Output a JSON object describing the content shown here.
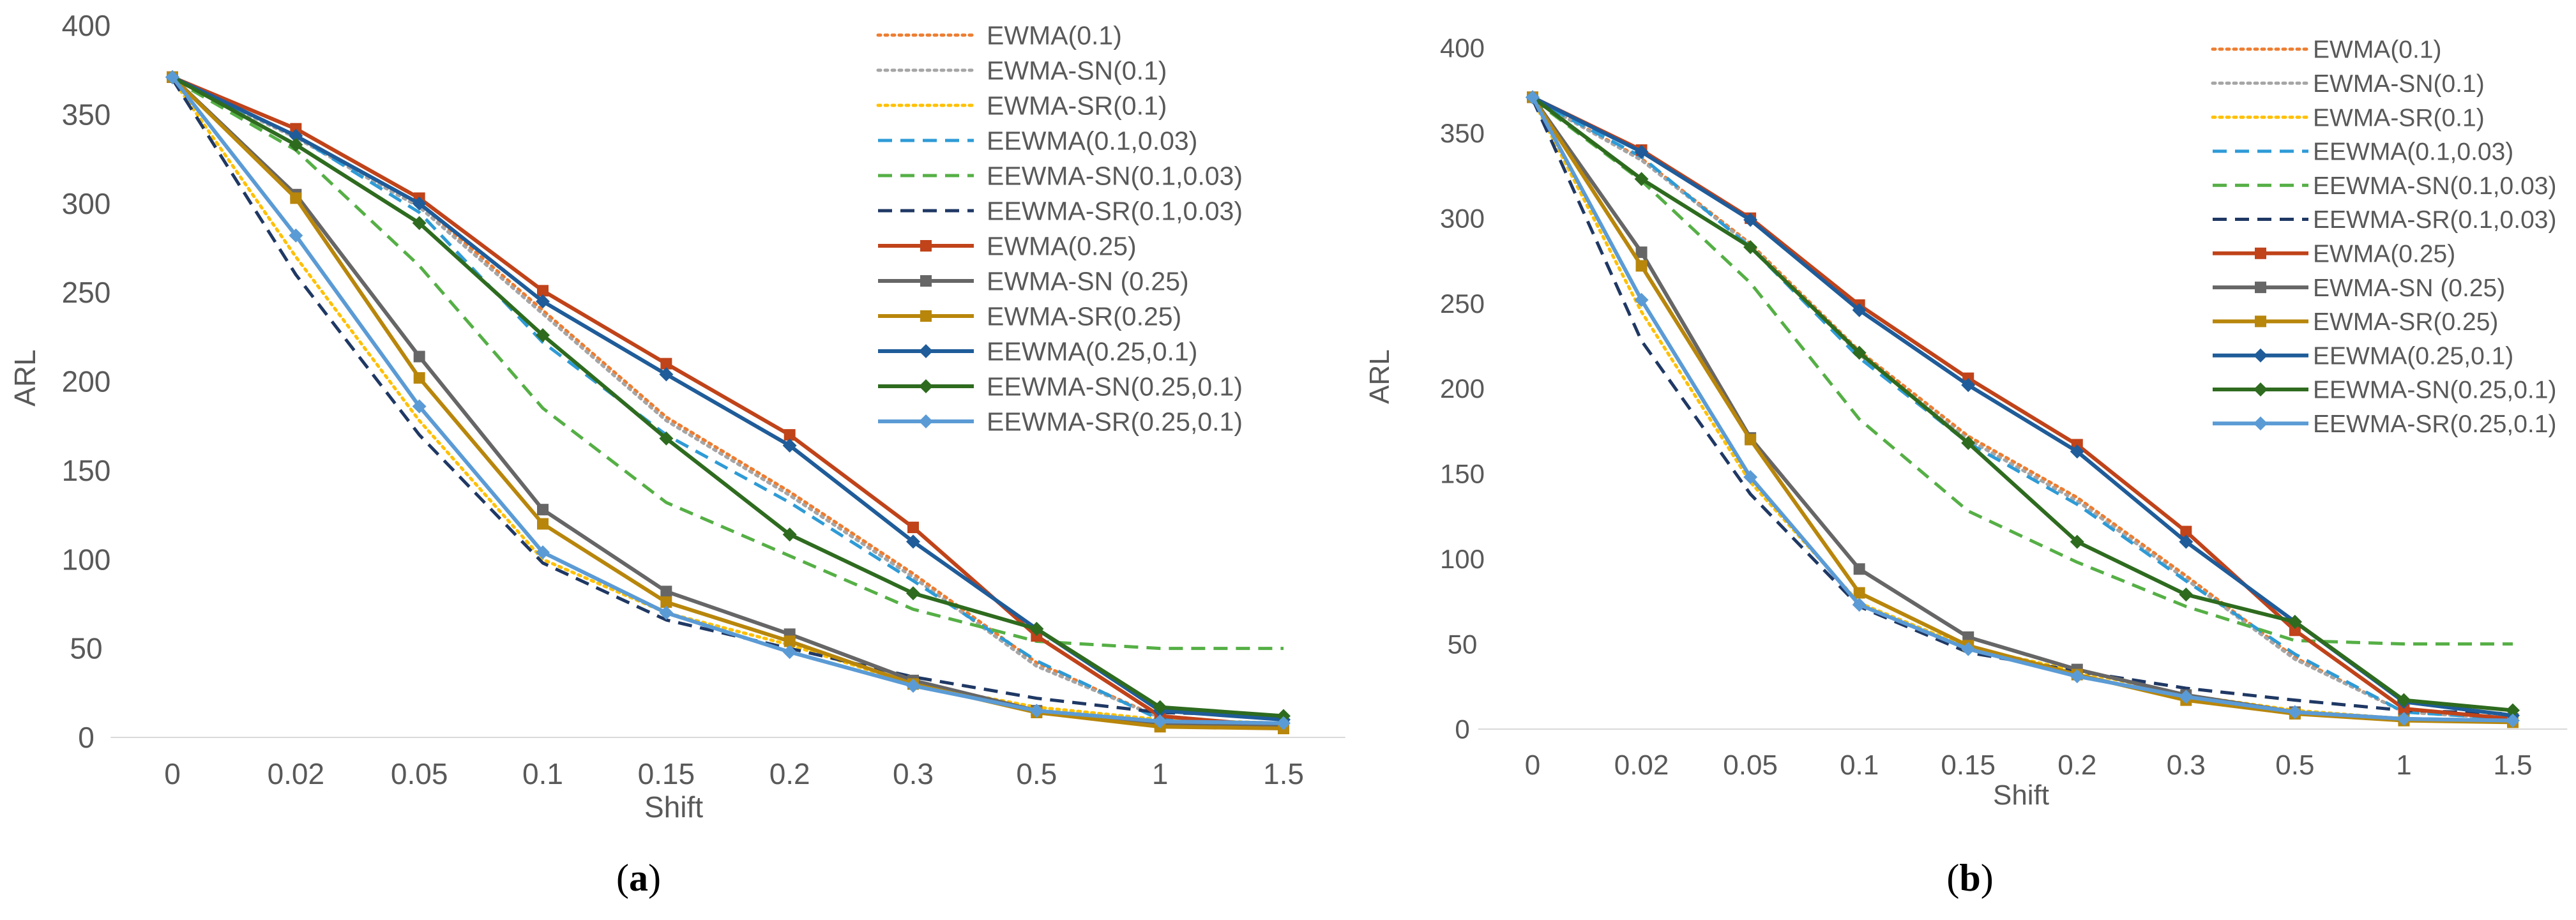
{
  "chart_data": [
    {
      "type": "line",
      "caption_bold": "a",
      "xlabel": "Shift",
      "ylabel": "ARL",
      "categories": [
        "0",
        "0.02",
        "0.05",
        "0.1",
        "0.15",
        "0.2",
        "0.3",
        "0.5",
        "1",
        "1.5"
      ],
      "ylim": [
        0,
        400
      ],
      "yticks": [
        "0",
        "50",
        "100",
        "150",
        "200",
        "250",
        "300",
        "350",
        "400"
      ],
      "legend_position": "top-right",
      "series": [
        {
          "name": "EWMA(0.1)",
          "color": "#ED7D31",
          "style": "dotted",
          "marker": "none",
          "values": [
            370,
            338,
            300,
            240,
            180,
            138,
            92,
            42,
            11,
            7
          ]
        },
        {
          "name": "EWMA-SN(0.1)",
          "color": "#A5A5A5",
          "style": "dotted",
          "marker": "none",
          "values": [
            370,
            337,
            298,
            238,
            178,
            136,
            90,
            40,
            11,
            7
          ]
        },
        {
          "name": "EWMA-SR(0.1)",
          "color": "#FFC000",
          "style": "dotted",
          "marker": "none",
          "values": [
            370,
            270,
            178,
            100,
            70,
            52,
            30,
            17,
            10,
            8
          ]
        },
        {
          "name": "EEWMA(0.1,0.03)",
          "color": "#2E9BD6",
          "style": "dashed",
          "marker": "none",
          "values": [
            370,
            338,
            295,
            222,
            170,
            132,
            88,
            43,
            10,
            7
          ]
        },
        {
          "name": "EEWMA-SN(0.1,0.03)",
          "color": "#55AF45",
          "style": "dashed",
          "marker": "none",
          "values": [
            370,
            330,
            265,
            185,
            132,
            102,
            72,
            54,
            50,
            50
          ]
        },
        {
          "name": "EEWMA-SR(0.1,0.03)",
          "color": "#1F3864",
          "style": "dashed",
          "marker": "none",
          "values": [
            370,
            260,
            170,
            98,
            66,
            50,
            34,
            22,
            14,
            12
          ]
        },
        {
          "name": "EWMA(0.25)",
          "color": "#C0431A",
          "style": "solid",
          "marker": "square",
          "values": [
            371,
            342,
            303,
            251,
            210,
            170,
            118,
            57,
            12,
            6
          ]
        },
        {
          "name": "EWMA-SN (0.25)",
          "color": "#666666",
          "style": "solid",
          "marker": "square",
          "values": [
            371,
            305,
            214,
            128,
            82,
            58,
            32,
            15,
            8,
            7
          ]
        },
        {
          "name": "EWMA-SR(0.25)",
          "color": "#B8860B",
          "style": "solid",
          "marker": "square",
          "values": [
            371,
            303,
            202,
            120,
            76,
            54,
            30,
            14,
            6,
            5
          ]
        },
        {
          "name": "EEWMA(0.25,0.1)",
          "color": "#1F5C99",
          "style": "solid",
          "marker": "diamond",
          "values": [
            371,
            338,
            300,
            245,
            204,
            164,
            110,
            61,
            15,
            10
          ]
        },
        {
          "name": "EEWMA-SN(0.25,0.1)",
          "color": "#2E6B1F",
          "style": "solid",
          "marker": "diamond",
          "values": [
            371,
            333,
            289,
            226,
            168,
            114,
            81,
            61,
            17,
            12
          ]
        },
        {
          "name": "EEWMA-SR(0.25,0.1)",
          "color": "#5B9BD5",
          "style": "solid",
          "marker": "diamond",
          "values": [
            371,
            282,
            186,
            104,
            70,
            48,
            29,
            15,
            9,
            8
          ]
        }
      ]
    },
    {
      "type": "line",
      "caption_bold": "b",
      "xlabel": "Shift",
      "ylabel": "ARL",
      "categories": [
        "0",
        "0.02",
        "0.05",
        "0.1",
        "0.15",
        "0.2",
        "0.3",
        "0.5",
        "1",
        "1.5"
      ],
      "ylim": [
        0,
        400
      ],
      "yticks": [
        "0",
        "50",
        "100",
        "150",
        "200",
        "250",
        "300",
        "350",
        "400"
      ],
      "legend_position": "top-right",
      "series": [
        {
          "name": "EWMA(0.1)",
          "color": "#ED7D31",
          "style": "dotted",
          "marker": "none",
          "values": [
            370,
            335,
            285,
            222,
            172,
            136,
            90,
            42,
            10,
            6
          ]
        },
        {
          "name": "EWMA-SN(0.1)",
          "color": "#A5A5A5",
          "style": "dotted",
          "marker": "none",
          "values": [
            370,
            334,
            284,
            220,
            170,
            134,
            88,
            41,
            10,
            6
          ]
        },
        {
          "name": "EWMA-SR(0.1)",
          "color": "#FFC000",
          "style": "dotted",
          "marker": "none",
          "values": [
            370,
            245,
            145,
            74,
            48,
            34,
            20,
            11,
            6,
            5
          ]
        },
        {
          "name": "EEWMA(0.1,0.03)",
          "color": "#2E9BD6",
          "style": "dashed",
          "marker": "none",
          "values": [
            370,
            336,
            283,
            218,
            168,
            132,
            87,
            44,
            10,
            6
          ]
        },
        {
          "name": "EEWMA-SN(0.1,0.03)",
          "color": "#55AF45",
          "style": "dashed",
          "marker": "none",
          "values": [
            370,
            322,
            262,
            182,
            128,
            98,
            72,
            52,
            50,
            50
          ]
        },
        {
          "name": "EEWMA-SR(0.1,0.03)",
          "color": "#1F3864",
          "style": "dashed",
          "marker": "none",
          "values": [
            370,
            228,
            138,
            72,
            45,
            34,
            24,
            17,
            11,
            9
          ]
        },
        {
          "name": "EWMA(0.25)",
          "color": "#C0431A",
          "style": "solid",
          "marker": "square",
          "values": [
            371,
            340,
            300,
            249,
            206,
            167,
            116,
            58,
            12,
            6
          ]
        },
        {
          "name": "EWMA-SN (0.25)",
          "color": "#666666",
          "style": "solid",
          "marker": "square",
          "values": [
            371,
            280,
            171,
            94,
            54,
            35,
            20,
            10,
            6,
            5
          ]
        },
        {
          "name": "EWMA-SR(0.25)",
          "color": "#B8860B",
          "style": "solid",
          "marker": "square",
          "values": [
            371,
            272,
            170,
            80,
            49,
            32,
            17,
            9,
            5,
            4
          ]
        },
        {
          "name": "EEWMA(0.25,0.1)",
          "color": "#1F5C99",
          "style": "solid",
          "marker": "diamond",
          "values": [
            371,
            339,
            299,
            246,
            202,
            163,
            110,
            63,
            16,
            8
          ]
        },
        {
          "name": "EEWMA-SN(0.25,0.1)",
          "color": "#2E6B1F",
          "style": "solid",
          "marker": "diamond",
          "values": [
            371,
            323,
            283,
            221,
            168,
            110,
            79,
            63,
            17,
            11
          ]
        },
        {
          "name": "EEWMA-SR(0.25,0.1)",
          "color": "#5B9BD5",
          "style": "solid",
          "marker": "diamond",
          "values": [
            371,
            252,
            148,
            73,
            47,
            31,
            19,
            10,
            6,
            5
          ]
        }
      ]
    }
  ]
}
